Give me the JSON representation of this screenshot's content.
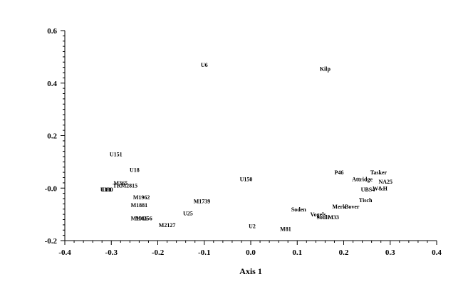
{
  "chart_data": {
    "type": "scatter",
    "title": "",
    "xlabel": "Axis 1",
    "ylabel": "",
    "xlim": [
      -0.4,
      0.4
    ],
    "ylim": [
      -0.2,
      0.6
    ],
    "xticks": [
      -0.4,
      -0.3,
      -0.2,
      -0.1,
      0.0,
      0.1,
      0.2,
      0.3,
      0.4
    ],
    "xtick_labels": [
      "-0.4",
      "-0.3",
      "-0.2",
      "-0.1",
      "0.0",
      "0.1",
      "0.2",
      "0.3",
      "0.4"
    ],
    "yticks": [
      -0.2,
      0.0,
      0.2,
      0.4,
      0.6
    ],
    "ytick_labels": [
      "-0.2",
      "-0.0",
      "0.2",
      "0.4",
      "0.6"
    ],
    "grid": false,
    "points": [
      {
        "label": "U6",
        "x": -0.1,
        "y": 0.47
      },
      {
        "label": "Kilp",
        "x": 0.16,
        "y": 0.455
      },
      {
        "label": "U151",
        "x": -0.29,
        "y": 0.13
      },
      {
        "label": "U18",
        "x": -0.25,
        "y": 0.07
      },
      {
        "label": "M365",
        "x": -0.28,
        "y": 0.02
      },
      {
        "label": "TRM2815",
        "x": -0.27,
        "y": 0.01
      },
      {
        "label": "U180",
        "x": -0.31,
        "y": -0.005
      },
      {
        "label": "U81",
        "x": -0.31,
        "y": -0.005
      },
      {
        "label": "M1962",
        "x": -0.235,
        "y": -0.035
      },
      {
        "label": "M1881",
        "x": -0.24,
        "y": -0.065
      },
      {
        "label": "M1739",
        "x": -0.105,
        "y": -0.05
      },
      {
        "label": "U25",
        "x": -0.135,
        "y": -0.095
      },
      {
        "label": "M1016",
        "x": -0.24,
        "y": -0.115
      },
      {
        "label": "M4256",
        "x": -0.23,
        "y": -0.115
      },
      {
        "label": "M2127",
        "x": -0.18,
        "y": -0.14
      },
      {
        "label": "U150",
        "x": -0.01,
        "y": 0.035
      },
      {
        "label": "U2",
        "x": 0.003,
        "y": -0.145
      },
      {
        "label": "M81",
        "x": 0.075,
        "y": -0.155
      },
      {
        "label": "Soden",
        "x": 0.103,
        "y": -0.08
      },
      {
        "label": "Vogels",
        "x": 0.145,
        "y": -0.1
      },
      {
        "label": "Souli",
        "x": 0.155,
        "y": -0.11
      },
      {
        "label": "M33",
        "x": 0.178,
        "y": -0.11
      },
      {
        "label": "Merk",
        "x": 0.19,
        "y": -0.07
      },
      {
        "label": "Bover",
        "x": 0.218,
        "y": -0.07
      },
      {
        "label": "P46",
        "x": 0.19,
        "y": 0.06
      },
      {
        "label": "Attridge",
        "x": 0.24,
        "y": 0.035
      },
      {
        "label": "Tasker",
        "x": 0.275,
        "y": 0.06
      },
      {
        "label": "NA25",
        "x": 0.29,
        "y": 0.025
      },
      {
        "label": "UBS4",
        "x": 0.252,
        "y": -0.005
      },
      {
        "label": "W&H",
        "x": 0.278,
        "y": 0.0
      },
      {
        "label": "Tisch",
        "x": 0.247,
        "y": -0.045
      }
    ]
  }
}
